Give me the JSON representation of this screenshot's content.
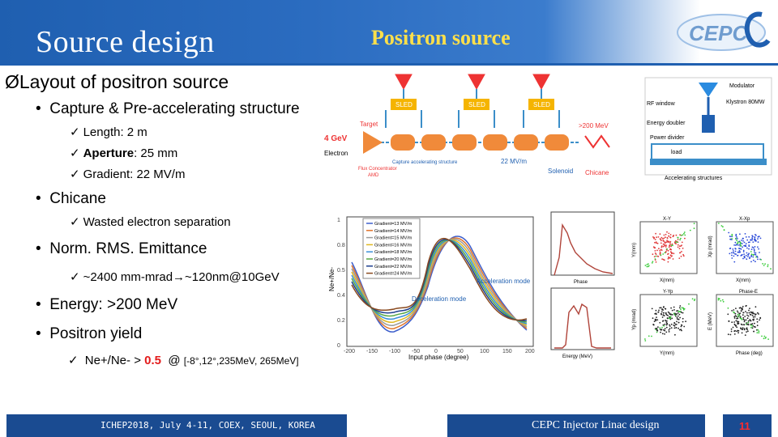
{
  "header": {
    "title": "Source design",
    "subtitle": "Positron source",
    "logo_text": "CEPC"
  },
  "content": {
    "heading": "Layout of positron source",
    "heading_marker": "Ø",
    "check": "✓",
    "b1": "Capture & Pre-accelerating structure",
    "b1_items": [
      "Length: 2 m",
      "Aperture",
      ": 25 mm",
      "Gradient: 22 MV/m"
    ],
    "b2": "Chicane",
    "b2_items": [
      "Wasted electron separation"
    ],
    "b3": "Norm. RMS. Emittance",
    "b3_items": [
      "~2400 mm-mrad",
      "→",
      "~120nm@10GeV"
    ],
    "b4": "Energy:  >200 MeV",
    "b5": "Positron yield",
    "b5_item_pre": "Ne+/Ne- > ",
    "b5_item_value": "0.5",
    "b5_item_at": "@",
    "b5_item_range": "[-8°,12°,235MeV, 265MeV]"
  },
  "figure": {
    "sled": "SLED",
    "energy_in": "4 GeV",
    "target": "Target",
    "electron": "Electron",
    "flux": "Flux Concentrator",
    "amd": "AMD",
    "capture": "Capture accelerating structure",
    "gradient": "22 MV/m",
    "solenoid": "Solenoid",
    "chicane": "Chicane",
    "energy_out": ">200 MeV",
    "modulator": "Modulator",
    "rf_window": "RF window",
    "klystron": "Klystron  80MW",
    "energy_doubler": "Energy doubler",
    "power_divider": "Power divider",
    "load": "load",
    "acc_structures": "Accelerating structures",
    "plot_legend": [
      "Gradient=13 MV/m",
      "Gradient=14 MV/m",
      "Gradient=15 MV/m",
      "Gradient=16 MV/m",
      "Gradient=18 MV/m",
      "Gradient=20 MV/m",
      "Gradient=22 MV/m",
      "Gradient=24 MV/m"
    ],
    "accel_mode": "Acceleration mode",
    "decel_mode": "Deceleration mode",
    "xlabel": "Input phase (degree)",
    "ylabel": "Ne+/Ne-",
    "xticks": [
      "-200",
      "-150",
      "-100",
      "-50",
      "0",
      "50",
      "100",
      "150",
      "200"
    ],
    "yticks": [
      "1",
      "0.8",
      "0.5",
      "0.4",
      "0.2",
      "0"
    ],
    "hist_top_x": "Phase",
    "hist_bot_x": "Energy (MeV)",
    "scatter_titles": [
      "X-Y",
      "X-Xp",
      "Y-Yp",
      "Phase-E"
    ],
    "scatter_xlabels": [
      "X(mm)",
      "X(mm)",
      "Y(mm)",
      "Phase (deg)"
    ],
    "scatter_ylabels": [
      "Y(mm)",
      "Xp (mrad)",
      "Yp (mrad)",
      "E (MeV)"
    ]
  },
  "footer": {
    "conference": "ICHEP2018, July 4-11, COEX, SEOUL, KOREA",
    "talk": "CEPC Injector Linac design",
    "page": "11"
  },
  "colors": {
    "header_blue": "#1f5fb0",
    "title_yellow": "#ffe04a",
    "footer_blue": "#1a4b91",
    "accent_red": "#e31b1b"
  }
}
